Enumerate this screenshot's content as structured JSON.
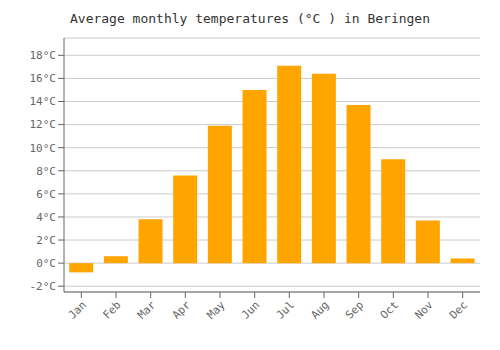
{
  "chart_data": {
    "type": "bar",
    "title": "Average monthly temperatures (°C ) in Beringen",
    "categories": [
      "Jan",
      "Feb",
      "Mar",
      "Apr",
      "May",
      "Jun",
      "Jul",
      "Aug",
      "Sep",
      "Oct",
      "Nov",
      "Dec"
    ],
    "values": [
      -0.8,
      0.6,
      3.8,
      7.6,
      11.9,
      15.0,
      17.1,
      16.4,
      13.7,
      9.0,
      3.7,
      0.4
    ],
    "color": "#FFA500",
    "ylim": [
      -2.5,
      19.5
    ],
    "yticks": [
      {
        "value": -2,
        "label": "-2°C"
      },
      {
        "value": 0,
        "label": "0°C"
      },
      {
        "value": 2,
        "label": "2°C"
      },
      {
        "value": 4,
        "label": "4°C"
      },
      {
        "value": 6,
        "label": "6°C"
      },
      {
        "value": 8,
        "label": "8°C"
      },
      {
        "value": 10,
        "label": "10°C"
      },
      {
        "value": 12,
        "label": "12°C"
      },
      {
        "value": 14,
        "label": "14°C"
      },
      {
        "value": 16,
        "label": "16°C"
      },
      {
        "value": 18,
        "label": "18°C"
      }
    ],
    "grid": true
  }
}
